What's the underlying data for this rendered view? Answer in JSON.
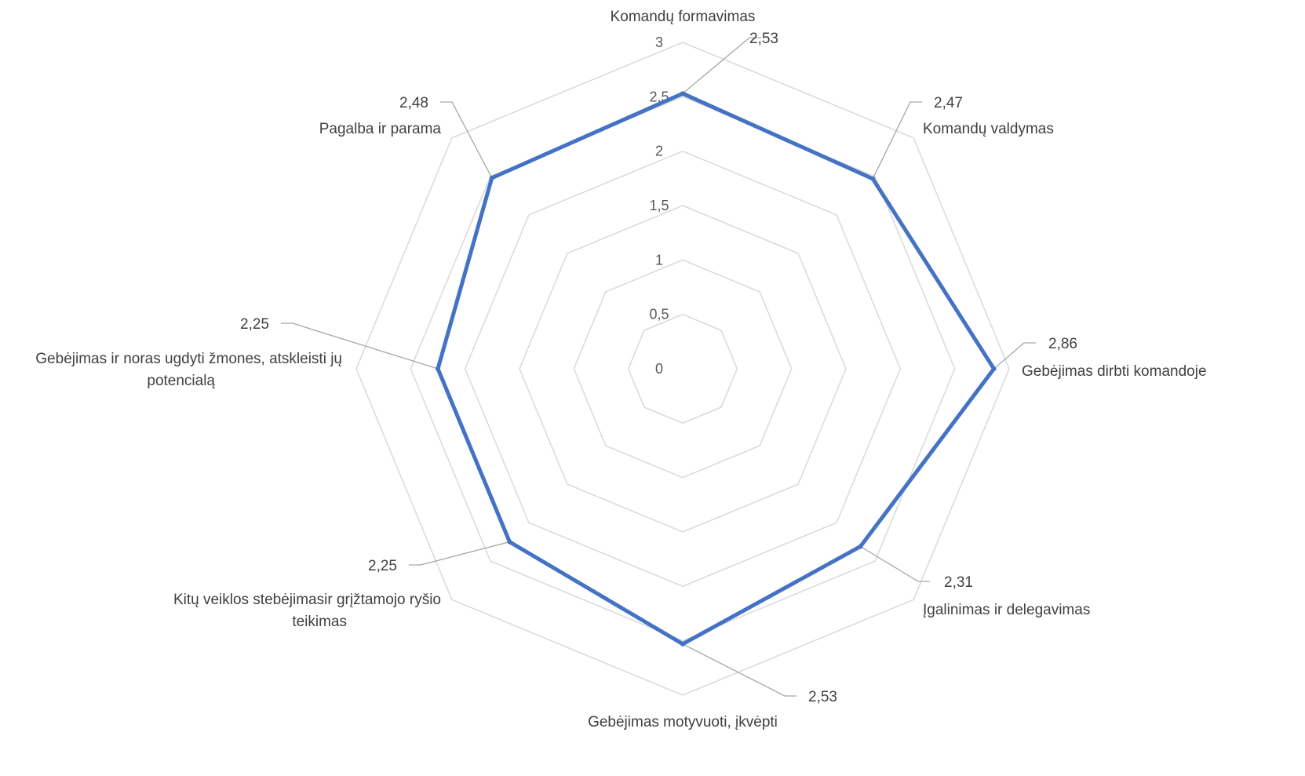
{
  "chart_data": {
    "type": "radar",
    "title": "",
    "categories": [
      "Komandų formavimas",
      "Komandų valdymas",
      "Gebėjimas dirbti komandoje",
      "Įgalinimas ir delegavimas",
      "Gebėjimas motyvuoti, įkvėpti",
      "Kitų veiklos stebėjimasir grįžtamojo ryšio teikimas",
      "Gebėjimas ir noras ugdyti žmones, atskleisti jų potencialą",
      "Pagalba ir parama"
    ],
    "category_lines": [
      [
        "Komandų formavimas"
      ],
      [
        "Komandų valdymas"
      ],
      [
        "Gebėjimas dirbti komandoje"
      ],
      [
        "Įgalinimas ir delegavimas"
      ],
      [
        "Gebėjimas motyvuoti, įkvėpti"
      ],
      [
        "Kitų veiklos stebėjimasir grįžtamojo ryšio",
        "teikimas"
      ],
      [
        "Gebėjimas ir noras ugdyti žmones, atskleisti jų",
        "potencialą"
      ],
      [
        "Pagalba ir parama"
      ]
    ],
    "series": [
      {
        "values": [
          2.53,
          2.47,
          2.86,
          2.31,
          2.53,
          2.25,
          2.25,
          2.48
        ],
        "value_labels": [
          "2,53",
          "2,47",
          "2,86",
          "2,31",
          "2,53",
          "2,25",
          "2,25",
          "2,48"
        ],
        "color": "#4472c4"
      }
    ],
    "axis": {
      "range": [
        0,
        3
      ],
      "ticks": [
        0,
        0.5,
        1,
        1.5,
        2,
        2.5,
        3
      ],
      "tick_labels": [
        "0",
        "0,5",
        "1",
        "1,5",
        "2",
        "2,5",
        "3"
      ]
    },
    "grid": true,
    "gridline_color": "#d9d9d9",
    "legend": "none"
  }
}
